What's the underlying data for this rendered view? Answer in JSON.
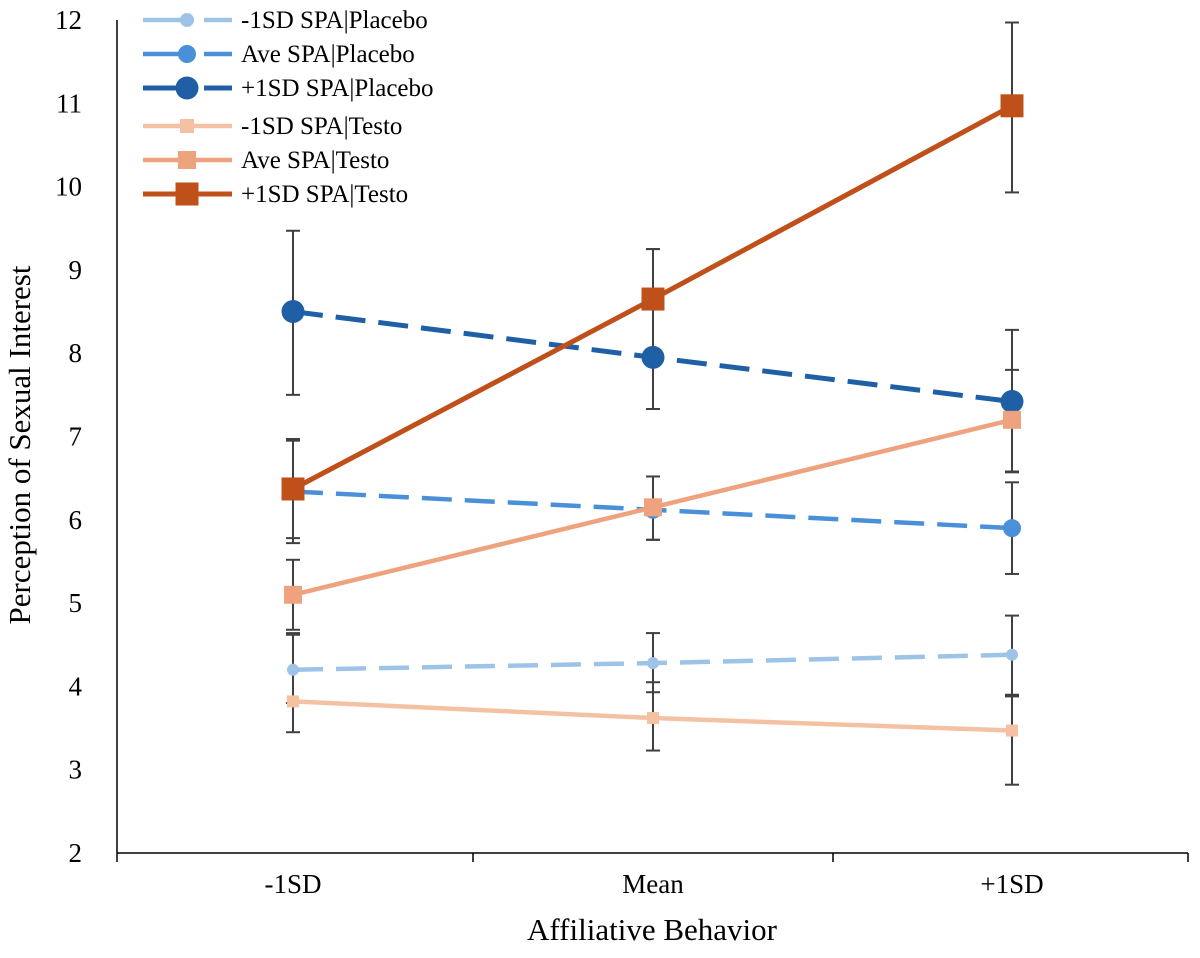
{
  "chart_data": {
    "type": "line",
    "title": "",
    "xlabel": "Affiliative Behavior",
    "ylabel": "Perception of Sexual Interest",
    "categories": [
      "-1SD",
      "Mean",
      "+1SD"
    ],
    "ylim": [
      2,
      12
    ],
    "yticks": [
      "2",
      "3",
      "4",
      "5",
      "6",
      "7",
      "8",
      "9",
      "10",
      "11",
      "12"
    ],
    "grid": false,
    "legend_position": "top-left",
    "series": [
      {
        "name": "-1SD SPA|Placebo",
        "color": "#9dc3e6",
        "dashed": true,
        "marker": "circle",
        "values": [
          4.2,
          4.28,
          4.38
        ],
        "err_low": [
          3.8,
          3.93,
          3.88
        ],
        "err_high": [
          4.64,
          4.64,
          4.85
        ]
      },
      {
        "name": "Ave SPA|Placebo",
        "color": "#4a90d9",
        "dashed": true,
        "marker": "circle",
        "values": [
          6.34,
          6.12,
          5.9
        ],
        "err_low": [
          5.72,
          5.76,
          5.35
        ],
        "err_high": [
          6.95,
          6.52,
          6.45
        ]
      },
      {
        "name": "+1SD SPA|Placebo",
        "color": "#1f5fa6",
        "dashed": true,
        "marker": "circle",
        "values": [
          8.5,
          7.95,
          7.42
        ],
        "err_low": [
          7.5,
          7.33,
          6.58
        ],
        "err_high": [
          9.47,
          9.25,
          8.28
        ]
      },
      {
        "name": "-1SD SPA|Testo",
        "color": "#f4c2a3",
        "dashed": false,
        "marker": "square",
        "values": [
          3.82,
          3.62,
          3.47
        ],
        "err_low": [
          3.45,
          3.23,
          2.82
        ],
        "err_high": [
          4.62,
          4.05,
          3.9
        ]
      },
      {
        "name": "Ave SPA|Testo",
        "color": "#eea27e",
        "dashed": false,
        "marker": "square",
        "values": [
          5.1,
          6.15,
          7.2
        ],
        "err_low": [
          4.68,
          5.76,
          6.57
        ],
        "err_high": [
          5.52,
          6.52,
          7.8
        ]
      },
      {
        "name": "+1SD SPA|Testo",
        "color": "#c0501a",
        "dashed": false,
        "marker": "square",
        "values": [
          6.37,
          8.65,
          10.97
        ],
        "err_low": [
          5.78,
          7.33,
          9.93
        ],
        "err_high": [
          6.97,
          9.25,
          11.97
        ]
      }
    ]
  }
}
